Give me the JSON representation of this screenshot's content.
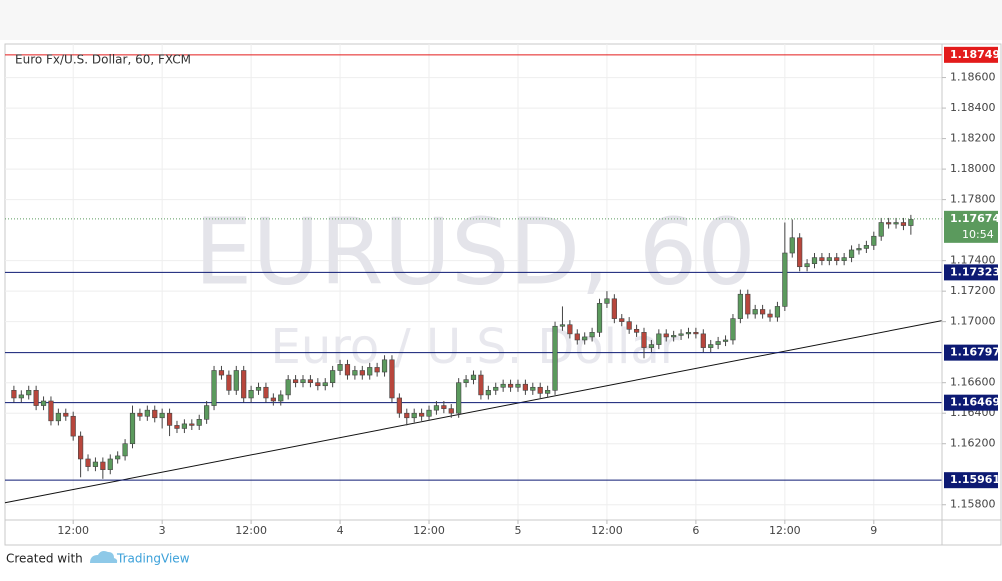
{
  "header": {
    "symbol_title": "Euro Fx/U.S. Dollar, 60, FXCM"
  },
  "chart_data": {
    "type": "candlestick",
    "watermark": "EURUSD, 60",
    "watermark_subtitle": "Euro / U.S. Dollar",
    "up_color": "#5b9a5d",
    "down_color": "#b8463c",
    "open": [
      1.1655,
      1.165,
      1.1652,
      1.1655,
      1.1645,
      1.1648,
      1.1635,
      1.164,
      1.1638,
      1.1625,
      1.161,
      1.1605,
      1.1608,
      1.1603,
      1.161,
      1.1612,
      1.162,
      1.164,
      1.1638,
      1.1642,
      1.1637,
      1.164,
      1.1632,
      1.163,
      1.1633,
      1.1632,
      1.1636,
      1.1645,
      1.1668,
      1.1665,
      1.1655,
      1.1668,
      1.165,
      1.1655,
      1.1657,
      1.165,
      1.1648,
      1.1652,
      1.1662,
      1.166,
      1.1662,
      1.166,
      1.1658,
      1.166,
      1.1668,
      1.1672,
      1.1665,
      1.1668,
      1.1665,
      1.167,
      1.1667,
      1.1675,
      1.165,
      1.164,
      1.1637,
      1.164,
      1.1638,
      1.1642,
      1.1645,
      1.1643,
      1.164,
      1.166,
      1.1662,
      1.1665,
      1.1652,
      1.1655,
      1.1657,
      1.1659,
      1.1657,
      1.1659,
      1.1655,
      1.1657,
      1.1653,
      1.1655,
      1.1697,
      1.1698,
      1.1692,
      1.1688,
      1.169,
      1.1693,
      1.1712,
      1.1715,
      1.1702,
      1.17,
      1.1695,
      1.1693,
      1.1683,
      1.1685,
      1.1692,
      1.169,
      1.1691,
      1.1692,
      1.1693,
      1.1692,
      1.1683,
      1.1685,
      1.1687,
      1.1688,
      1.1702,
      1.1718,
      1.1705,
      1.1708,
      1.1705,
      1.1703,
      1.171,
      1.1745,
      1.1755,
      1.1736,
      1.1738,
      1.1742,
      1.174,
      1.1742,
      1.174,
      1.1742,
      1.1747,
      1.1748,
      1.175,
      1.1756,
      1.1765,
      1.1764,
      1.1765,
      1.1763
    ],
    "high": [
      1.1658,
      1.1655,
      1.1658,
      1.1658,
      1.1651,
      1.1651,
      1.1643,
      1.1643,
      1.1641,
      1.1628,
      1.1613,
      1.1611,
      1.1611,
      1.1613,
      1.1615,
      1.1623,
      1.1645,
      1.1643,
      1.1645,
      1.1645,
      1.1643,
      1.1643,
      1.1635,
      1.1636,
      1.1636,
      1.1639,
      1.1648,
      1.1671,
      1.1671,
      1.1668,
      1.1671,
      1.1671,
      1.1658,
      1.166,
      1.166,
      1.1653,
      1.1655,
      1.1665,
      1.1665,
      1.1665,
      1.1665,
      1.1663,
      1.1663,
      1.1671,
      1.1675,
      1.1675,
      1.1671,
      1.1671,
      1.1673,
      1.1673,
      1.1678,
      1.1678,
      1.1653,
      1.1643,
      1.1643,
      1.1643,
      1.1645,
      1.1648,
      1.1648,
      1.1646,
      1.1663,
      1.1665,
      1.1668,
      1.1668,
      1.1658,
      1.166,
      1.1662,
      1.1662,
      1.1662,
      1.1662,
      1.166,
      1.166,
      1.1658,
      1.17,
      1.171,
      1.1701,
      1.1695,
      1.1693,
      1.1696,
      1.1715,
      1.172,
      1.1718,
      1.1705,
      1.1703,
      1.1698,
      1.1696,
      1.1688,
      1.1695,
      1.1695,
      1.1694,
      1.1695,
      1.1696,
      1.1696,
      1.1695,
      1.1688,
      1.169,
      1.1691,
      1.1705,
      1.1721,
      1.1721,
      1.1711,
      1.1711,
      1.1708,
      1.1713,
      1.1765,
      1.1767,
      1.1758,
      1.1741,
      1.1745,
      1.1745,
      1.1745,
      1.1745,
      1.1745,
      1.175,
      1.1751,
      1.1753,
      1.1759,
      1.1768,
      1.1768,
      1.1768,
      1.1768,
      1.177
    ],
    "low": [
      1.1647,
      1.1647,
      1.1649,
      1.1642,
      1.1642,
      1.1632,
      1.1632,
      1.1635,
      1.1622,
      1.1598,
      1.1602,
      1.1602,
      1.1597,
      1.16,
      1.1607,
      1.1609,
      1.1617,
      1.1635,
      1.1635,
      1.1634,
      1.163,
      1.1625,
      1.1627,
      1.1627,
      1.1629,
      1.1629,
      1.1633,
      1.1642,
      1.1662,
      1.1652,
      1.1652,
      1.1647,
      1.1647,
      1.1652,
      1.1647,
      1.1645,
      1.1645,
      1.1649,
      1.1657,
      1.1657,
      1.1657,
      1.1655,
      1.1655,
      1.1657,
      1.1665,
      1.1662,
      1.1662,
      1.1662,
      1.1662,
      1.1664,
      1.1664,
      1.1647,
      1.1637,
      1.1632,
      1.1634,
      1.1635,
      1.1635,
      1.1639,
      1.164,
      1.1637,
      1.1637,
      1.1657,
      1.1659,
      1.1649,
      1.1649,
      1.1652,
      1.1654,
      1.1654,
      1.1654,
      1.1652,
      1.1652,
      1.165,
      1.165,
      1.1652,
      1.1694,
      1.1689,
      1.1685,
      1.1685,
      1.1687,
      1.169,
      1.1709,
      1.1699,
      1.1697,
      1.1692,
      1.169,
      1.1676,
      1.168,
      1.1682,
      1.1687,
      1.1687,
      1.1688,
      1.1689,
      1.1689,
      1.168,
      1.168,
      1.1682,
      1.1684,
      1.1685,
      1.1699,
      1.1702,
      1.1702,
      1.1702,
      1.17,
      1.17,
      1.1707,
      1.1742,
      1.1733,
      1.1733,
      1.1735,
      1.1737,
      1.1737,
      1.1737,
      1.1737,
      1.1739,
      1.1744,
      1.1745,
      1.1747,
      1.1753,
      1.1761,
      1.1761,
      1.176,
      1.1757
    ],
    "close": [
      1.165,
      1.1652,
      1.1655,
      1.1645,
      1.1648,
      1.1635,
      1.164,
      1.1638,
      1.1625,
      1.161,
      1.1605,
      1.1608,
      1.1603,
      1.161,
      1.1612,
      1.162,
      1.164,
      1.1638,
      1.1642,
      1.1637,
      1.164,
      1.1632,
      1.163,
      1.1633,
      1.1632,
      1.1636,
      1.1645,
      1.1668,
      1.1665,
      1.1655,
      1.1668,
      1.165,
      1.1655,
      1.1657,
      1.165,
      1.1648,
      1.1652,
      1.1662,
      1.166,
      1.1662,
      1.166,
      1.1658,
      1.166,
      1.1668,
      1.1672,
      1.1665,
      1.1668,
      1.1665,
      1.167,
      1.1667,
      1.1675,
      1.165,
      1.164,
      1.1637,
      1.164,
      1.1638,
      1.1642,
      1.1645,
      1.1643,
      1.164,
      1.166,
      1.1662,
      1.1665,
      1.1652,
      1.1655,
      1.1657,
      1.1659,
      1.1657,
      1.1659,
      1.1655,
      1.1657,
      1.1653,
      1.1655,
      1.1697,
      1.1698,
      1.1692,
      1.1688,
      1.169,
      1.1693,
      1.1712,
      1.1715,
      1.1702,
      1.17,
      1.1695,
      1.1693,
      1.1683,
      1.1685,
      1.1692,
      1.169,
      1.1691,
      1.1692,
      1.1693,
      1.1692,
      1.1683,
      1.1685,
      1.1687,
      1.1688,
      1.1702,
      1.1718,
      1.1705,
      1.1708,
      1.1705,
      1.1703,
      1.171,
      1.1745,
      1.1755,
      1.1736,
      1.1738,
      1.1742,
      1.174,
      1.1742,
      1.174,
      1.1742,
      1.1747,
      1.1748,
      1.175,
      1.1756,
      1.1765,
      1.1764,
      1.1765,
      1.1763,
      1.1767
    ],
    "xlim": [
      -1.2,
      125.2
    ],
    "xticks": [
      {
        "value": 8,
        "label": "12:00"
      },
      {
        "value": 20,
        "label": "3"
      },
      {
        "value": 32,
        "label": "12:00"
      },
      {
        "value": 44,
        "label": "4"
      },
      {
        "value": 56,
        "label": "12:00"
      },
      {
        "value": 68,
        "label": "5"
      },
      {
        "value": 80,
        "label": "12:00"
      },
      {
        "value": 92,
        "label": "6"
      },
      {
        "value": 104,
        "label": "12:00"
      },
      {
        "value": 116,
        "label": "9"
      }
    ],
    "ylim": [
      1.157,
      1.1882
    ],
    "yticks": [
      {
        "value": 1.158,
        "label": "1.15800"
      },
      {
        "value": 1.162,
        "label": "1.16200"
      },
      {
        "value": 1.164,
        "label": "1.16400"
      },
      {
        "value": 1.166,
        "label": "1.16600"
      },
      {
        "value": 1.17,
        "label": "1.17000"
      },
      {
        "value": 1.172,
        "label": "1.17200"
      },
      {
        "value": 1.174,
        "label": "1.17400"
      },
      {
        "value": 1.178,
        "label": "1.17800"
      },
      {
        "value": 1.18,
        "label": "1.18000"
      },
      {
        "value": 1.182,
        "label": "1.18200"
      },
      {
        "value": 1.184,
        "label": "1.18400"
      },
      {
        "value": 1.186,
        "label": "1.18600"
      }
    ],
    "grid": true,
    "levels": [
      {
        "value": 1.18749,
        "color": "#e31b1b"
      },
      {
        "value": 1.17323,
        "color": "#0d1a73"
      },
      {
        "value": 1.16797,
        "color": "#0d1a73"
      },
      {
        "value": 1.16469,
        "color": "#0d1a73"
      },
      {
        "value": 1.15961,
        "color": "#0d1a73"
      }
    ],
    "current_price": {
      "value": 1.17674,
      "countdown": "10:54",
      "color": "#5b9a5d"
    },
    "trendline": {
      "x": [
        -1.2,
        125.2
      ],
      "y": [
        1.15813,
        1.17007
      ],
      "color": "#111111"
    }
  },
  "footer": {
    "created_with": "Created with",
    "brand": "TradingView"
  }
}
